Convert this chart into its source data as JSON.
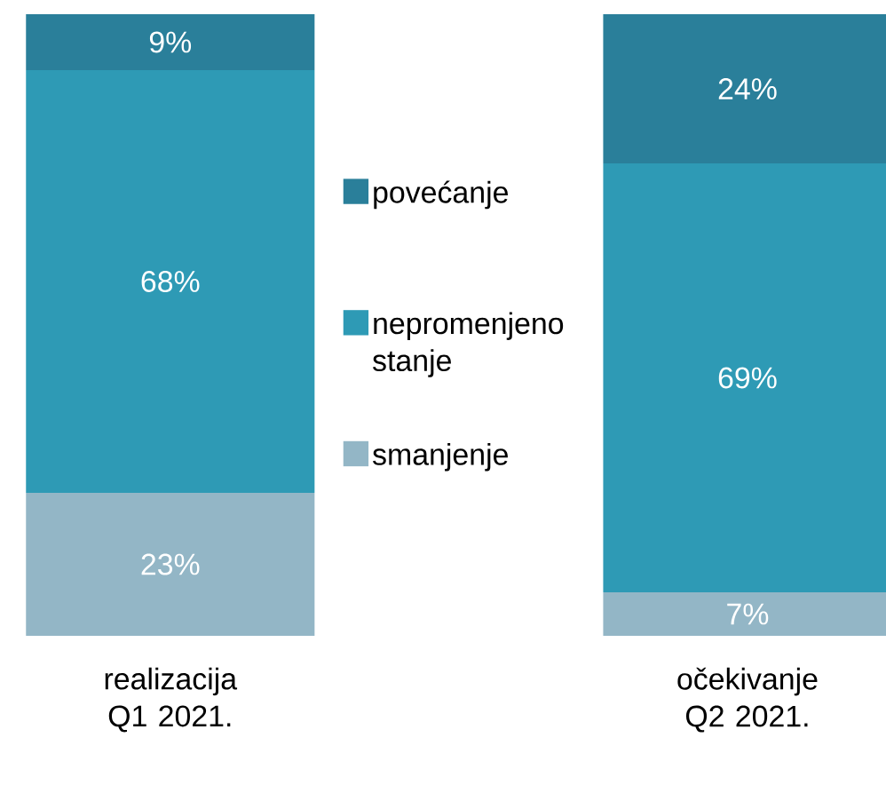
{
  "chart_data": {
    "type": "bar",
    "stacked": true,
    "legend": "center",
    "categories": [
      "realizacija Q1 2021.",
      "očekivanje Q2 2021."
    ],
    "series": [
      {
        "name": "smanjenje",
        "color": "#93b6c6",
        "values": [
          23,
          7
        ],
        "value_labels": [
          "23%",
          "7%"
        ]
      },
      {
        "name": "nepromenjeno stanje",
        "color": "#2e9ab5",
        "values": [
          68,
          69
        ],
        "value_labels": [
          "68%",
          "69%"
        ]
      },
      {
        "name": "povećanje",
        "color": "#2a7f9a",
        "values": [
          9,
          24
        ],
        "value_labels": [
          "9%",
          "24%"
        ]
      }
    ]
  }
}
